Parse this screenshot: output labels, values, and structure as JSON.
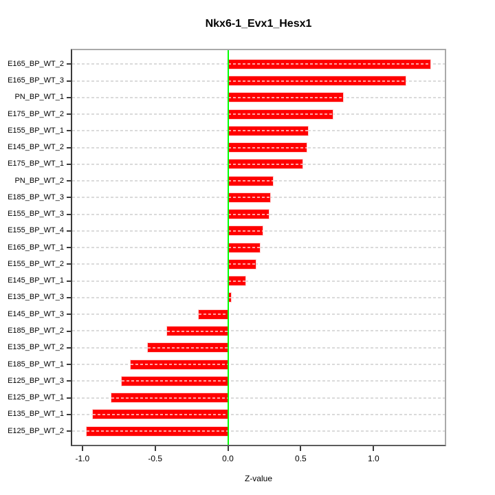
{
  "chart_data": {
    "type": "bar",
    "orientation": "horizontal",
    "title": "Nkx6-1_Evx1_Hesx1",
    "xlabel": "Z-value",
    "ylabel": "",
    "categories": [
      "E165_BP_WT_2",
      "E165_BP_WT_3",
      "PN_BP_WT_1",
      "E175_BP_WT_2",
      "E155_BP_WT_1",
      "E145_BP_WT_2",
      "E175_BP_WT_1",
      "PN_BP_WT_2",
      "E185_BP_WT_3",
      "E155_BP_WT_3",
      "E155_BP_WT_4",
      "E165_BP_WT_1",
      "E155_BP_WT_2",
      "E145_BP_WT_1",
      "E135_BP_WT_3",
      "E145_BP_WT_3",
      "E185_BP_WT_2",
      "E135_BP_WT_2",
      "E185_BP_WT_1",
      "E125_BP_WT_3",
      "E125_BP_WT_1",
      "E135_BP_WT_1",
      "E125_BP_WT_2"
    ],
    "values": [
      1.39,
      1.22,
      0.79,
      0.72,
      0.55,
      0.54,
      0.51,
      0.31,
      0.29,
      0.28,
      0.24,
      0.22,
      0.19,
      0.12,
      0.02,
      -0.2,
      -0.42,
      -0.55,
      -0.67,
      -0.73,
      -0.8,
      -0.93,
      -0.97
    ],
    "xlim": [
      -1.07,
      1.49
    ],
    "xticks": [
      {
        "label": "-1.0",
        "value": -1.0
      },
      {
        "label": "-0.5",
        "value": -0.5
      },
      {
        "label": "0.0",
        "value": 0.0
      },
      {
        "label": "0.5",
        "value": 0.5
      },
      {
        "label": "1.0",
        "value": 1.0
      }
    ],
    "grid": "dashed-horizontal",
    "legend": null,
    "colors": {
      "bar": "#ff0000",
      "bar_dash": "#ffffff",
      "zero_line": "#00ff00",
      "grid": "#dadada",
      "box_light": "#a9a9a9",
      "axis_dark": "#3a3a3a",
      "text": "#000000"
    }
  }
}
